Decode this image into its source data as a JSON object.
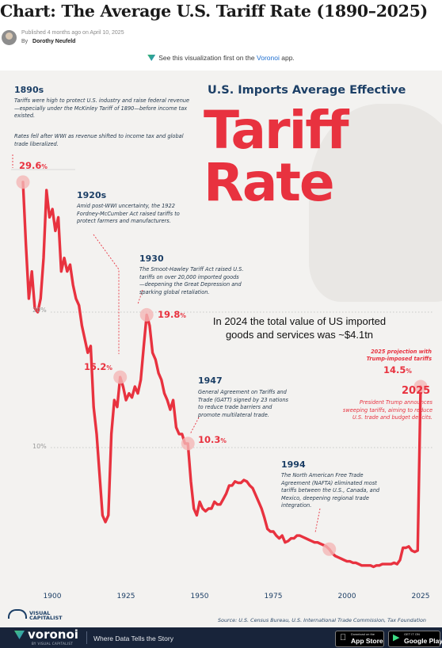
{
  "header": {
    "title": "Chart: The Average U.S. Tariff Rate (1890–2025)",
    "published": "Published 4 months ago on April 10, 2025",
    "by_label": "By",
    "author": "Dorothy Neufeld"
  },
  "app_note": {
    "prefix": "See this visualization first on the",
    "brand": "Voronoi",
    "suffix": "app."
  },
  "infographic": {
    "title_small": "U.S. Imports Average Effective",
    "title_big_1": "Tariff",
    "title_big_2": "Rate",
    "overlay_text": "In 2024 the total value of US imported goods and services was ~$4.1tn",
    "annotations": [
      {
        "era": "1890s",
        "value": "29.6",
        "text_1": "Tariffs were high to protect U.S. industry and raise federal revenue—especially under the McKinley Tariff of 1890—before income tax existed.",
        "text_2": "Rates fell after WWI as revenue shifted to income tax and global trade liberalized."
      },
      {
        "era": "1920s",
        "value": "15.2",
        "text_1": "Amid post-WWI uncertainty, the 1922 Fordney-McCumber Act raised tariffs to protect farmers and manufacturers."
      },
      {
        "era": "1930",
        "value": "19.8",
        "text_1": "The Smoot-Hawley Tariff Act raised U.S. tariffs on over 20,000 imported goods—deepening the Great Depression and sparking global retaliation."
      },
      {
        "era": "1947",
        "value": "10.3",
        "text_1": "General Agreement on Tariffs and Trade (GATT) signed by 23 nations to reduce trade barriers and promote multilateral trade."
      },
      {
        "era": "1994",
        "text_1": "The North American Free Trade Agreement (NAFTA) eliminated most tariffs between the U.S., Canada, and Mexico, deepening regional trade integration."
      },
      {
        "era": "2025",
        "value": "14.5",
        "text_1": "President Trump announces sweeping tariffs, aiming to reduce U.S. trade and budget deficits.",
        "projection_label": "2025 projection with Trump-imposed tariffs"
      }
    ],
    "percent_symbol": "%",
    "source": "Source: U.S. Census Bureau, U.S. International Trade Commission, Tax Foundation",
    "vc_logo_1": "VISUAL",
    "vc_logo_2": "CAPITALIST"
  },
  "footer": {
    "brand": "voronoi",
    "by_line": "BY VISUAL CAPITALIST",
    "tagline": "Where Data Tells the Story",
    "app_store_small": "Download on the",
    "app_store_name": "App Store",
    "google_small": "GET IT ON",
    "google_name": "Google Play"
  },
  "colors": {
    "line": "#e8323f",
    "title_navy": "#1c3f66",
    "panel_bg": "#f3f2f0",
    "footer_bg": "#18243a"
  },
  "chart_data": {
    "type": "line",
    "title": "U.S. Imports Average Effective Tariff Rate",
    "xlabel": "",
    "ylabel": "",
    "xlim": [
      1890,
      2025
    ],
    "ylim": [
      0,
      30
    ],
    "x_ticks": [
      1900,
      1925,
      1950,
      1975,
      2000,
      2025
    ],
    "y_ticks": [
      10,
      20
    ],
    "y_tick_labels": [
      "10%",
      "20%"
    ],
    "grid": true,
    "series": [
      {
        "values": [
          [
            1890,
            29.6
          ],
          [
            1891,
            25.0
          ],
          [
            1892,
            21.0
          ],
          [
            1893,
            23.0
          ],
          [
            1894,
            20.3
          ],
          [
            1895,
            20.0
          ],
          [
            1896,
            21.0
          ],
          [
            1897,
            24.0
          ],
          [
            1898,
            29.0
          ],
          [
            1899,
            27.0
          ],
          [
            1900,
            27.6
          ],
          [
            1901,
            26.0
          ],
          [
            1902,
            27.0
          ],
          [
            1903,
            23.0
          ],
          [
            1904,
            24.0
          ],
          [
            1905,
            23.0
          ],
          [
            1906,
            23.5
          ],
          [
            1907,
            22.0
          ],
          [
            1908,
            21.0
          ],
          [
            1909,
            20.5
          ],
          [
            1910,
            19.0
          ],
          [
            1911,
            18.0
          ],
          [
            1912,
            17.0
          ],
          [
            1913,
            17.5
          ],
          [
            1914,
            13.0
          ],
          [
            1915,
            11.0
          ],
          [
            1916,
            8.0
          ],
          [
            1917,
            5.0
          ],
          [
            1918,
            4.5
          ],
          [
            1919,
            5.0
          ],
          [
            1920,
            11.0
          ],
          [
            1921,
            13.5
          ],
          [
            1922,
            13.0
          ],
          [
            1923,
            15.2
          ],
          [
            1924,
            14.5
          ],
          [
            1925,
            13.5
          ],
          [
            1926,
            14.0
          ],
          [
            1927,
            13.7
          ],
          [
            1928,
            14.5
          ],
          [
            1929,
            14.0
          ],
          [
            1930,
            15.0
          ],
          [
            1931,
            17.5
          ],
          [
            1932,
            19.8
          ],
          [
            1933,
            19.0
          ],
          [
            1934,
            17.0
          ],
          [
            1935,
            16.5
          ],
          [
            1936,
            15.5
          ],
          [
            1937,
            15.0
          ],
          [
            1938,
            14.0
          ],
          [
            1939,
            13.5
          ],
          [
            1940,
            12.8
          ],
          [
            1941,
            13.5
          ],
          [
            1942,
            11.5
          ],
          [
            1943,
            11.0
          ],
          [
            1944,
            11.0
          ],
          [
            1945,
            10.3
          ],
          [
            1946,
            10.3
          ],
          [
            1947,
            7.5
          ],
          [
            1948,
            5.5
          ],
          [
            1949,
            5.0
          ],
          [
            1950,
            6.0
          ],
          [
            1951,
            5.5
          ],
          [
            1952,
            5.3
          ],
          [
            1953,
            5.5
          ],
          [
            1954,
            5.5
          ],
          [
            1955,
            6.0
          ],
          [
            1956,
            5.8
          ],
          [
            1957,
            5.8
          ],
          [
            1958,
            6.2
          ],
          [
            1959,
            6.6
          ],
          [
            1960,
            7.2
          ],
          [
            1961,
            7.2
          ],
          [
            1962,
            7.5
          ],
          [
            1963,
            7.4
          ],
          [
            1964,
            7.4
          ],
          [
            1965,
            7.6
          ],
          [
            1966,
            7.5
          ],
          [
            1967,
            7.2
          ],
          [
            1968,
            7.0
          ],
          [
            1969,
            6.5
          ],
          [
            1970,
            6.0
          ],
          [
            1971,
            5.5
          ],
          [
            1972,
            4.8
          ],
          [
            1973,
            4.0
          ],
          [
            1974,
            3.8
          ],
          [
            1975,
            3.8
          ],
          [
            1976,
            3.5
          ],
          [
            1977,
            3.3
          ],
          [
            1978,
            3.5
          ],
          [
            1979,
            3.0
          ],
          [
            1980,
            3.1
          ],
          [
            1981,
            3.3
          ],
          [
            1982,
            3.3
          ],
          [
            1983,
            3.5
          ],
          [
            1984,
            3.5
          ],
          [
            1985,
            3.4
          ],
          [
            1986,
            3.3
          ],
          [
            1987,
            3.2
          ],
          [
            1988,
            3.1
          ],
          [
            1989,
            3.0
          ],
          [
            1990,
            3.0
          ],
          [
            1991,
            2.9
          ],
          [
            1992,
            2.8
          ],
          [
            1993,
            2.7
          ],
          [
            1994,
            2.5
          ],
          [
            1995,
            2.2
          ],
          [
            1996,
            2.0
          ],
          [
            1997,
            1.9
          ],
          [
            1998,
            1.8
          ],
          [
            1999,
            1.7
          ],
          [
            2000,
            1.6
          ],
          [
            2001,
            1.6
          ],
          [
            2002,
            1.5
          ],
          [
            2003,
            1.5
          ],
          [
            2004,
            1.4
          ],
          [
            2005,
            1.3
          ],
          [
            2006,
            1.3
          ],
          [
            2007,
            1.3
          ],
          [
            2008,
            1.3
          ],
          [
            2009,
            1.2
          ],
          [
            2010,
            1.3
          ],
          [
            2011,
            1.3
          ],
          [
            2012,
            1.4
          ],
          [
            2013,
            1.4
          ],
          [
            2014,
            1.4
          ],
          [
            2015,
            1.4
          ],
          [
            2016,
            1.5
          ],
          [
            2017,
            1.4
          ],
          [
            2018,
            1.7
          ],
          [
            2019,
            2.6
          ],
          [
            2020,
            2.6
          ],
          [
            2021,
            2.7
          ],
          [
            2022,
            2.4
          ],
          [
            2023,
            2.3
          ],
          [
            2024,
            2.4
          ],
          [
            2025,
            14.5
          ]
        ]
      }
    ],
    "highlights": [
      {
        "x": 1890,
        "y": 29.6
      },
      {
        "x": 1923,
        "y": 15.2
      },
      {
        "x": 1932,
        "y": 19.8
      },
      {
        "x": 1946,
        "y": 10.3
      },
      {
        "x": 1994,
        "y": 2.5
      },
      {
        "x": 2025,
        "y": 14.5
      }
    ]
  }
}
